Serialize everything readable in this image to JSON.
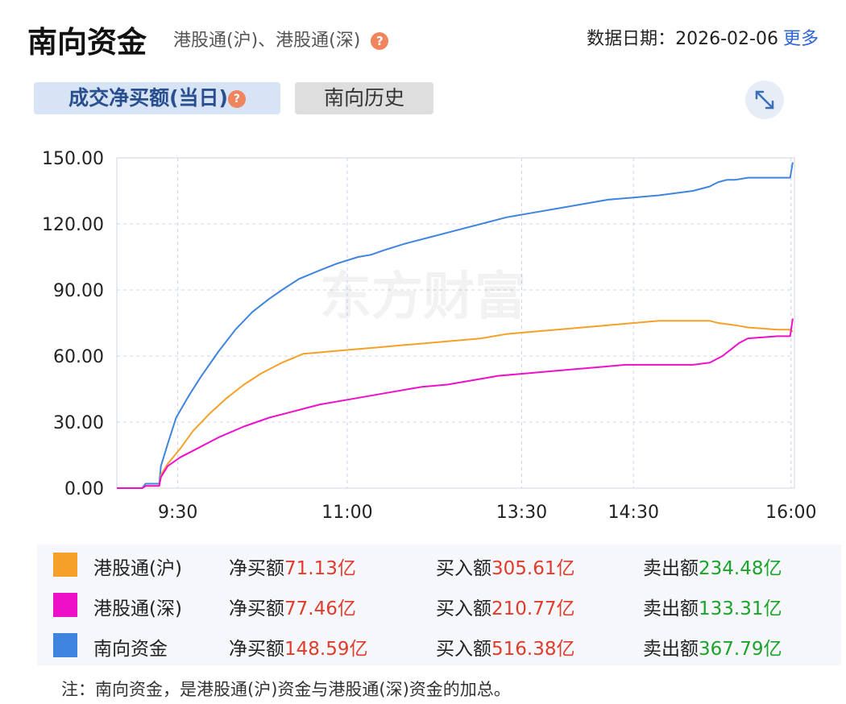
{
  "header": {
    "title": "南向资金",
    "subtitle": "港股通(沪)、港股通(深)",
    "date_label": "数据日期：",
    "date_value": "2026-02-06",
    "more_label": "更多"
  },
  "tabs": [
    {
      "label": "成交净买额(当日)"
    },
    {
      "label": "南向历史"
    }
  ],
  "watermark": "东方财富",
  "legend": [
    {
      "name": "港股通(沪)",
      "color": "#f5a029",
      "net_label": "净买额",
      "net_value": "71.13亿",
      "buy_label": "买入额",
      "buy_value": "305.61亿",
      "sell_label": "卖出额",
      "sell_value": "234.48亿"
    },
    {
      "name": "港股通(深)",
      "color": "#ee10c8",
      "net_label": "净买额",
      "net_value": "77.46亿",
      "buy_label": "买入额",
      "buy_value": "210.77亿",
      "sell_label": "卖出额",
      "sell_value": "133.31亿"
    },
    {
      "name": "南向资金",
      "color": "#3f84de",
      "net_label": "净买额",
      "net_value": "148.59亿",
      "buy_label": "买入额",
      "buy_value": "516.38亿",
      "sell_label": "卖出额",
      "sell_value": "367.79亿"
    }
  ],
  "footnote": "注：南向资金，是港股通(沪)资金与港股通(深)资金的加总。",
  "chart_data": {
    "type": "line",
    "ylim": [
      0,
      150
    ],
    "y_ticks": [
      "0.00",
      "30.00",
      "60.00",
      "90.00",
      "120.00",
      "150.00"
    ],
    "x_ticks": [
      "9:30",
      "11:00",
      "13:30",
      "14:30",
      "16:00"
    ],
    "grid": true,
    "series": [
      {
        "name": "南向资金",
        "color": "#3f84de",
        "points": [
          [
            0,
            0
          ],
          [
            30,
            0
          ],
          [
            34,
            2
          ],
          [
            50,
            2
          ],
          [
            52,
            10
          ],
          [
            60,
            20
          ],
          [
            70,
            32
          ],
          [
            85,
            42
          ],
          [
            100,
            51
          ],
          [
            120,
            62
          ],
          [
            140,
            72
          ],
          [
            160,
            80
          ],
          [
            180,
            86
          ],
          [
            195,
            90
          ],
          [
            215,
            95
          ],
          [
            240,
            99
          ],
          [
            260,
            102
          ],
          [
            285,
            105
          ],
          [
            300,
            106
          ],
          [
            315,
            108
          ],
          [
            340,
            111
          ],
          [
            370,
            114
          ],
          [
            400,
            117
          ],
          [
            430,
            120
          ],
          [
            460,
            123
          ],
          [
            490,
            125
          ],
          [
            520,
            127
          ],
          [
            550,
            129
          ],
          [
            580,
            131
          ],
          [
            610,
            132
          ],
          [
            640,
            133
          ],
          [
            660,
            134
          ],
          [
            680,
            135
          ],
          [
            700,
            137
          ],
          [
            705,
            138
          ],
          [
            710,
            139
          ],
          [
            720,
            140
          ],
          [
            730,
            140
          ],
          [
            745,
            141
          ],
          [
            780,
            141
          ],
          [
            795,
            141
          ],
          [
            798,
            148
          ]
        ]
      },
      {
        "name": "港股通(沪)",
        "color": "#f5a029",
        "points": [
          [
            0,
            0
          ],
          [
            30,
            0
          ],
          [
            34,
            1
          ],
          [
            50,
            1
          ],
          [
            52,
            6
          ],
          [
            60,
            11
          ],
          [
            75,
            18
          ],
          [
            90,
            26
          ],
          [
            110,
            34
          ],
          [
            130,
            41
          ],
          [
            150,
            47
          ],
          [
            170,
            52
          ],
          [
            195,
            57
          ],
          [
            220,
            61
          ],
          [
            250,
            62
          ],
          [
            280,
            63
          ],
          [
            310,
            64
          ],
          [
            340,
            65
          ],
          [
            370,
            66
          ],
          [
            400,
            67
          ],
          [
            430,
            68
          ],
          [
            460,
            70
          ],
          [
            490,
            71
          ],
          [
            520,
            72
          ],
          [
            550,
            73
          ],
          [
            580,
            74
          ],
          [
            610,
            75
          ],
          [
            640,
            76
          ],
          [
            680,
            76
          ],
          [
            700,
            76
          ],
          [
            710,
            75
          ],
          [
            730,
            74
          ],
          [
            745,
            73
          ],
          [
            780,
            72
          ],
          [
            795,
            72
          ],
          [
            798,
            71
          ]
        ]
      },
      {
        "name": "港股通(深)",
        "color": "#ee10c8",
        "points": [
          [
            0,
            0
          ],
          [
            30,
            0
          ],
          [
            34,
            1
          ],
          [
            50,
            1
          ],
          [
            52,
            5
          ],
          [
            60,
            10
          ],
          [
            75,
            14
          ],
          [
            95,
            18
          ],
          [
            120,
            23
          ],
          [
            150,
            28
          ],
          [
            180,
            32
          ],
          [
            210,
            35
          ],
          [
            240,
            38
          ],
          [
            270,
            40
          ],
          [
            300,
            42
          ],
          [
            330,
            44
          ],
          [
            360,
            46
          ],
          [
            390,
            47
          ],
          [
            420,
            49
          ],
          [
            450,
            51
          ],
          [
            480,
            52
          ],
          [
            510,
            53
          ],
          [
            540,
            54
          ],
          [
            570,
            55
          ],
          [
            600,
            56
          ],
          [
            630,
            56
          ],
          [
            660,
            56
          ],
          [
            680,
            56
          ],
          [
            700,
            57
          ],
          [
            715,
            60
          ],
          [
            725,
            63
          ],
          [
            735,
            66
          ],
          [
            745,
            68
          ],
          [
            780,
            69
          ],
          [
            795,
            69
          ],
          [
            798,
            77
          ]
        ]
      }
    ]
  }
}
